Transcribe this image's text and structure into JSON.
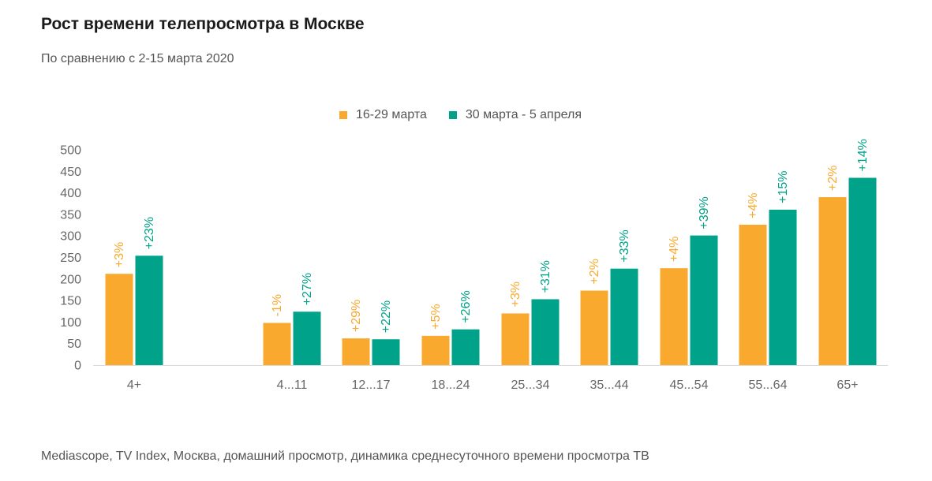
{
  "title": "Рост времени телепросмотра в Москве",
  "subtitle": "По сравнению с 2-15 марта 2020",
  "source": "Mediascope, TV Index, Москва, домашний просмотр, динамика среднесуточного времени просмотра ТВ",
  "colors": {
    "series1": "#F9A92D",
    "series2": "#00A28A",
    "axis": "#d9d9d9",
    "tick": "#666666"
  },
  "chart_data": {
    "type": "bar",
    "categories": [
      "4+",
      "4...11",
      "12...17",
      "18...24",
      "25...34",
      "35...44",
      "45...54",
      "55...64",
      "65+"
    ],
    "series": [
      {
        "name": "16-29 марта",
        "values": [
          212,
          98,
          62,
          68,
          120,
          173,
          225,
          326,
          390
        ],
        "labels": [
          "+3%",
          "-1%",
          "+29%",
          "+5%",
          "+3%",
          "+2%",
          "+4%",
          "+4%",
          "+2%"
        ]
      },
      {
        "name": "30 марта - 5 апреля",
        "values": [
          254,
          124,
          60,
          83,
          153,
          224,
          301,
          361,
          435
        ],
        "labels": [
          "+23%",
          "+27%",
          "+22%",
          "+26%",
          "+31%",
          "+33%",
          "+39%",
          "+15%",
          "+14%"
        ]
      }
    ],
    "ylim": [
      0,
      500
    ],
    "yticks": [
      0,
      50,
      100,
      150,
      200,
      250,
      300,
      350,
      400,
      450,
      500
    ],
    "grid": false,
    "legend_position": "top-center"
  }
}
